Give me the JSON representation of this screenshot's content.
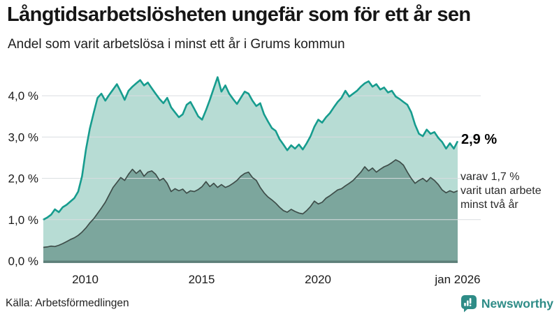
{
  "header": {
    "title": "Långtidsarbetslösheten ungefär som för ett år sen",
    "subtitle": "Andel som varit arbetslösa i minst ett år i Grums kommun"
  },
  "annotations": {
    "latest_value": "2,9 %",
    "note_lines": [
      "varav 1,7 %",
      "varit utan arbete",
      "minst två år"
    ]
  },
  "footer": {
    "source": "Källa: Arbetsförmedlingen",
    "brand": "Newsworthy"
  },
  "colors": {
    "accent_teal": "#169c8e",
    "light_fill": "#b7dcd4",
    "dark_fill": "#7ca69d",
    "dark_line": "#3e4d49",
    "gridline": "#d9dde0",
    "baseline": "#5c7e78",
    "tick_text": "#1a1a1a",
    "brand_teal": "#2e8c87"
  },
  "chart_data": {
    "type": "area",
    "title": "Långtidsarbetslösheten ungefär som för ett år sen",
    "subtitle": "Andel som varit arbetslösa i minst ett år i Grums kommun",
    "unit": "%",
    "source": "Arbetsförmedlingen",
    "x_start": 2008.2,
    "x_end": 2026.0,
    "ylim": [
      0,
      4.6
    ],
    "grid": true,
    "x_ticks": [
      {
        "value": 2010,
        "label": "2010"
      },
      {
        "value": 2015,
        "label": "2015"
      },
      {
        "value": 2020,
        "label": "2020"
      },
      {
        "value": 2026,
        "label": "jan 2026"
      }
    ],
    "y_ticks": [
      {
        "value": 0,
        "label": "0,0 %"
      },
      {
        "value": 1,
        "label": "1,0 %"
      },
      {
        "value": 2,
        "label": "2,0 %"
      },
      {
        "value": 3,
        "label": "3,0 %"
      },
      {
        "value": 4,
        "label": "4,0 %"
      }
    ],
    "series": [
      {
        "name": "Andel arbetslösa minst ett år",
        "latest": 2.9,
        "line_color": "#169c8e",
        "line_width": 2.6,
        "fill_color": "#b7dcd4",
        "values": [
          1.0,
          1.05,
          1.12,
          1.25,
          1.18,
          1.3,
          1.36,
          1.44,
          1.52,
          1.68,
          2.05,
          2.7,
          3.2,
          3.58,
          3.95,
          4.05,
          3.88,
          4.02,
          4.15,
          4.28,
          4.1,
          3.9,
          4.12,
          4.22,
          4.3,
          4.38,
          4.25,
          4.32,
          4.18,
          4.05,
          3.92,
          3.82,
          3.95,
          3.72,
          3.6,
          3.48,
          3.55,
          3.78,
          3.85,
          3.68,
          3.5,
          3.42,
          3.65,
          3.9,
          4.18,
          4.45,
          4.1,
          4.25,
          4.05,
          3.92,
          3.8,
          3.95,
          4.1,
          4.05,
          3.88,
          3.75,
          3.82,
          3.55,
          3.38,
          3.22,
          3.15,
          2.95,
          2.82,
          2.68,
          2.8,
          2.72,
          2.82,
          2.7,
          2.85,
          3.02,
          3.25,
          3.42,
          3.35,
          3.48,
          3.58,
          3.72,
          3.85,
          3.95,
          4.12,
          3.98,
          4.05,
          4.12,
          4.22,
          4.3,
          4.35,
          4.22,
          4.28,
          4.15,
          4.2,
          4.08,
          4.12,
          3.98,
          3.92,
          3.85,
          3.78,
          3.6,
          3.3,
          3.08,
          3.02,
          3.18,
          3.08,
          3.12,
          2.98,
          2.88,
          2.72,
          2.85,
          2.72,
          2.9
        ]
      },
      {
        "name": "varav utan arbete minst två år",
        "latest": 1.7,
        "line_color": "#3e4d49",
        "line_width": 1.7,
        "fill_color": "#7ca69d",
        "values": [
          0.33,
          0.34,
          0.36,
          0.35,
          0.38,
          0.42,
          0.47,
          0.52,
          0.56,
          0.62,
          0.7,
          0.8,
          0.92,
          1.02,
          1.15,
          1.28,
          1.42,
          1.6,
          1.78,
          1.9,
          2.02,
          1.95,
          2.1,
          2.22,
          2.12,
          2.2,
          2.05,
          2.15,
          2.18,
          2.1,
          1.95,
          2.0,
          1.88,
          1.68,
          1.75,
          1.7,
          1.74,
          1.64,
          1.7,
          1.68,
          1.73,
          1.8,
          1.92,
          1.8,
          1.88,
          1.78,
          1.85,
          1.78,
          1.82,
          1.88,
          1.95,
          2.05,
          2.12,
          2.15,
          2.02,
          1.95,
          1.78,
          1.65,
          1.55,
          1.48,
          1.4,
          1.3,
          1.22,
          1.18,
          1.25,
          1.2,
          1.16,
          1.14,
          1.22,
          1.32,
          1.45,
          1.38,
          1.42,
          1.52,
          1.58,
          1.65,
          1.72,
          1.75,
          1.82,
          1.88,
          1.95,
          2.05,
          2.15,
          2.28,
          2.18,
          2.25,
          2.15,
          2.22,
          2.28,
          2.32,
          2.38,
          2.45,
          2.4,
          2.32,
          2.15,
          2.0,
          1.88,
          1.95,
          2.0,
          1.92,
          2.02,
          1.95,
          1.85,
          1.72,
          1.65,
          1.7,
          1.66,
          1.7
        ]
      }
    ]
  }
}
